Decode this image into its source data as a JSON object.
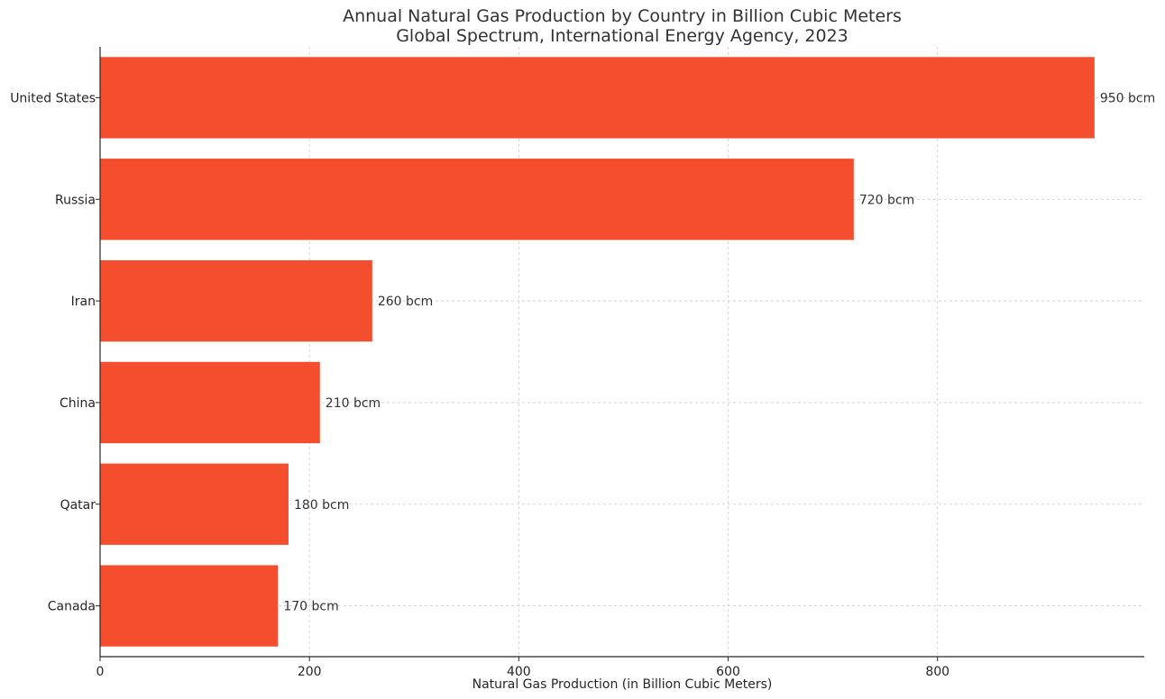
{
  "chart_data": {
    "type": "bar",
    "orientation": "horizontal",
    "title": "Annual Natural Gas Production by Country in Billion Cubic Meters",
    "subtitle": "Global Spectrum, International Energy Agency, 2023",
    "xlabel": "Natural Gas Production (in Billion Cubic Meters)",
    "ylabel": "",
    "categories": [
      "United States",
      "Russia",
      "Iran",
      "China",
      "Qatar",
      "Canada"
    ],
    "values": [
      950,
      720,
      260,
      210,
      180,
      170
    ],
    "value_labels": [
      "950 bcm",
      "720 bcm",
      "260 bcm",
      "210 bcm",
      "180 bcm",
      "170 bcm"
    ],
    "xlim": [
      0,
      997.5
    ],
    "xticks": [
      0,
      200,
      400,
      600,
      800
    ],
    "xtick_labels": [
      "0",
      "200",
      "400",
      "600",
      "800"
    ],
    "grid": true,
    "bar_color": "#f44e2f"
  }
}
